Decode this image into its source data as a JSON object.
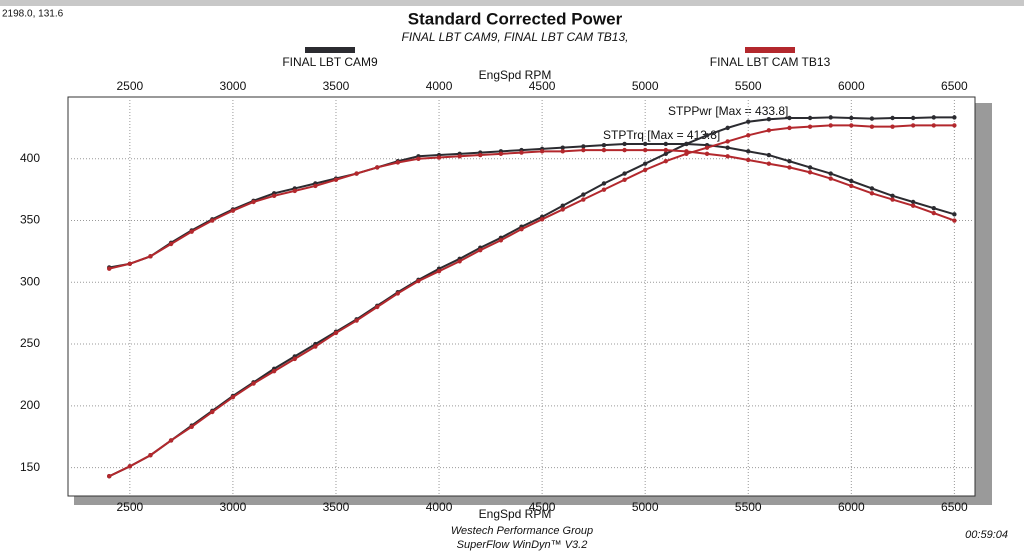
{
  "chart_data": {
    "type": "line",
    "title": "Standard Corrected Power",
    "subtitle": "FINAL LBT CAM9, FINAL LBT CAM TB13,",
    "cursor_readout": "2198.0, 131.6",
    "x_label": "EngSpd RPM",
    "annotations": [
      "STPPwr [Max = 433.8]",
      "STPTrq [Max = 413.8]"
    ],
    "footer": [
      "Westech Performance Group",
      "SuperFlow WinDyn™ V3.2"
    ],
    "clock": "00:59:04",
    "x": [
      2400,
      2500,
      2600,
      2700,
      2800,
      2900,
      3000,
      3100,
      3200,
      3300,
      3400,
      3500,
      3600,
      3700,
      3800,
      3900,
      4000,
      4100,
      4200,
      4300,
      4400,
      4500,
      4600,
      4700,
      4800,
      4900,
      5000,
      5100,
      5200,
      5300,
      5400,
      5500,
      5600,
      5700,
      5800,
      5900,
      6000,
      6100,
      6200,
      6300,
      6400,
      6500
    ],
    "series": [
      {
        "name": "FINAL LBT CAM9",
        "color": "#2b2b30",
        "power": [
          143,
          151,
          160,
          172,
          184,
          196,
          208,
          219,
          230,
          240,
          250,
          260,
          270,
          281,
          292,
          302,
          311,
          319,
          328,
          336,
          345,
          353,
          362,
          371,
          380,
          388,
          396,
          404,
          412,
          419,
          425,
          430,
          432,
          433,
          433,
          433.5,
          433,
          432.5,
          433,
          433,
          433.5,
          433.5
        ],
        "torque": [
          312,
          315,
          321,
          332,
          342,
          351,
          359,
          366,
          372,
          376,
          380,
          384,
          388,
          393,
          398,
          402,
          403,
          404,
          405,
          406,
          407,
          408,
          409,
          410,
          411,
          412,
          412,
          412,
          412,
          411,
          409,
          406,
          403,
          398,
          393,
          388,
          382,
          376,
          370,
          365,
          360,
          355
        ]
      },
      {
        "name": "FINAL LBT CAM TB13",
        "color": "#b3282d",
        "power": [
          143,
          151,
          160,
          172,
          183,
          195,
          207,
          218,
          228,
          238,
          248,
          259,
          269,
          280,
          291,
          301,
          309,
          317,
          326,
          334,
          343,
          351,
          359,
          367,
          375,
          383,
          391,
          398,
          404,
          409,
          414,
          419,
          423,
          425,
          426,
          427,
          427,
          426,
          426,
          427,
          427,
          427
        ],
        "torque": [
          311,
          315,
          321,
          331,
          341,
          350,
          358,
          365,
          370,
          374,
          378,
          383,
          388,
          393,
          397,
          400,
          401,
          402,
          403,
          404,
          405,
          406,
          406,
          407,
          407,
          407,
          407,
          407,
          406,
          404,
          402,
          399,
          396,
          393,
          389,
          384,
          378,
          372,
          367,
          362,
          356,
          350
        ]
      }
    ],
    "xlim": [
      2200,
      6600
    ],
    "xticks": [
      2500,
      3000,
      3500,
      4000,
      4500,
      5000,
      5500,
      6000,
      6500
    ],
    "ylim": [
      127,
      450
    ],
    "yticks": [
      150,
      200,
      250,
      300,
      350,
      400
    ],
    "grid": true
  }
}
